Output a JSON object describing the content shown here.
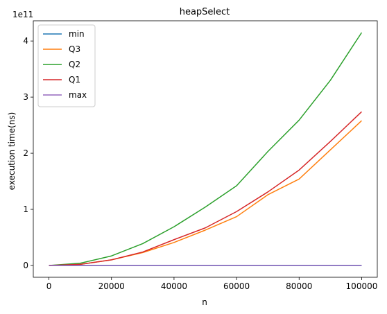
{
  "chart_data": {
    "type": "line",
    "title": "heapSelect",
    "xlabel": "n",
    "ylabel": "execution time(ns)",
    "y_scale_label": "1e11",
    "xlim": [
      -5000,
      105000
    ],
    "ylim": [
      -0.21,
      4.36
    ],
    "x_ticks": [
      0,
      20000,
      40000,
      60000,
      80000,
      100000
    ],
    "x_tick_labels": [
      "0",
      "20000",
      "40000",
      "60000",
      "80000",
      "100000"
    ],
    "y_ticks": [
      0,
      1,
      2,
      3,
      4
    ],
    "y_tick_labels": [
      "0",
      "1",
      "2",
      "3",
      "4"
    ],
    "grid": false,
    "legend_position": "upper-left",
    "x": [
      0,
      10000,
      20000,
      30000,
      40000,
      50000,
      60000,
      70000,
      80000,
      90000,
      100000
    ],
    "series": [
      {
        "name": "min",
        "color": "#1f77b4",
        "values": [
          0,
          0,
          0,
          0,
          0,
          0,
          0,
          0,
          0,
          0,
          0
        ]
      },
      {
        "name": "Q3",
        "color": "#ff7f0e",
        "values": [
          0,
          0.02,
          0.1,
          0.23,
          0.41,
          0.63,
          0.87,
          1.26,
          1.54,
          2.06,
          2.58
        ]
      },
      {
        "name": "Q2",
        "color": "#2ca02c",
        "values": [
          0,
          0.04,
          0.17,
          0.39,
          0.69,
          1.04,
          1.42,
          2.03,
          2.59,
          3.3,
          4.15
        ]
      },
      {
        "name": "Q1",
        "color": "#d62728",
        "values": [
          0,
          0.02,
          0.1,
          0.24,
          0.46,
          0.67,
          0.96,
          1.31,
          1.7,
          2.21,
          2.74
        ]
      },
      {
        "name": "max",
        "color": "#9467bd",
        "values": [
          0,
          0,
          0,
          0,
          0,
          0,
          0,
          0,
          0,
          0,
          0
        ]
      }
    ]
  }
}
